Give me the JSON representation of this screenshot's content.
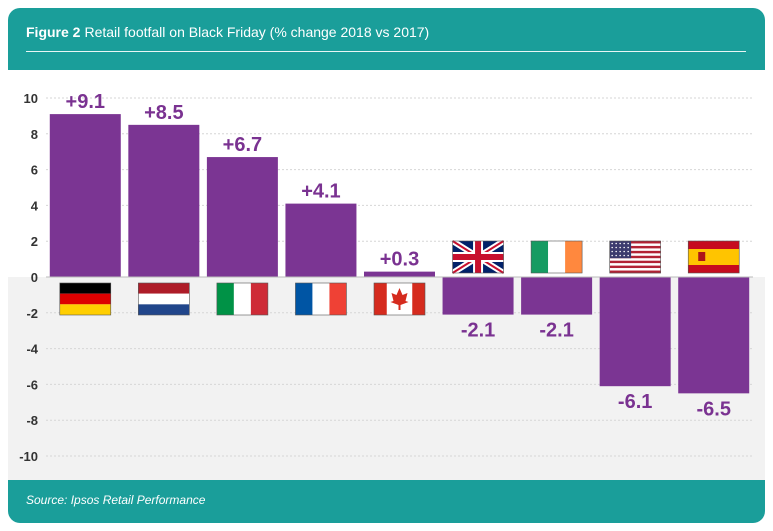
{
  "header": {
    "figure_label": "Figure 2",
    "title": "Retail footfall on Black Friday (% change 2018 vs 2017)"
  },
  "footer": {
    "source": "Source: Ipsos Retail Performance"
  },
  "colors": {
    "frame": "#1a9e9a",
    "bar": "#7b3593",
    "negative_band": "#f2f2f2",
    "label": "#7a3291"
  },
  "chart_data": {
    "type": "bar",
    "title": "Retail footfall on Black Friday (% change 2018 vs 2017)",
    "xlabel": "",
    "ylabel": "",
    "ylim": [
      -10,
      10
    ],
    "yticks": [
      10,
      8,
      6,
      4,
      2,
      0,
      -2,
      -4,
      -6,
      -8,
      -10
    ],
    "grid": true,
    "legend": "none",
    "categories": [
      "Germany",
      "Netherlands",
      "Italy",
      "France",
      "Canada",
      "United Kingdom",
      "Ireland",
      "United States",
      "Spain"
    ],
    "category_icons": [
      "germany-flag",
      "netherlands-flag",
      "italy-flag",
      "france-flag",
      "canada-flag",
      "uk-flag",
      "ireland-flag",
      "usa-flag",
      "spain-flag"
    ],
    "values": [
      9.1,
      8.5,
      6.7,
      4.1,
      0.3,
      -2.1,
      -2.1,
      -6.1,
      -6.5
    ],
    "value_labels": [
      "+9.1",
      "+8.5",
      "+6.7",
      "+4.1",
      "+0.3",
      "-2.1",
      "-2.1",
      "-6.1",
      "-6.5"
    ]
  }
}
